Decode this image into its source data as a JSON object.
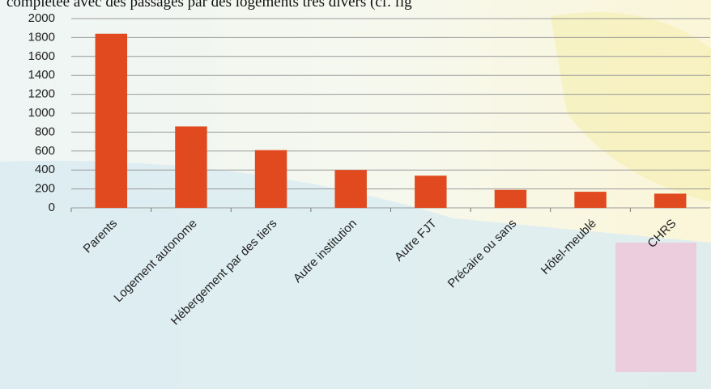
{
  "chart_data": {
    "type": "bar",
    "annotations": [
      "complétée avec des passages par des logements très divers (cf. fig"
    ],
    "categories": [
      "Parents",
      "Logement autonome",
      "Hébergement par des tiers",
      "Autre institution",
      "Autre FJT",
      "Précaire ou sans",
      "Hôtel-meublé",
      "CHRS"
    ],
    "values": [
      1840,
      860,
      610,
      400,
      340,
      190,
      170,
      150
    ],
    "color": "#e04a1e",
    "ylim": [
      0,
      2000
    ],
    "yticks": [
      0,
      200,
      400,
      600,
      800,
      1000,
      1200,
      1400,
      1600,
      1800,
      2000
    ],
    "grid": true
  }
}
